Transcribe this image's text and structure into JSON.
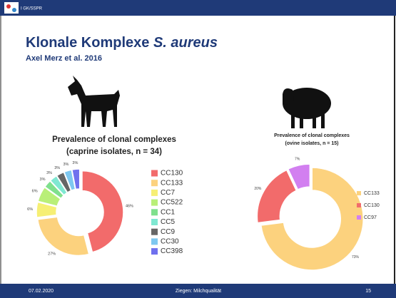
{
  "header": {
    "logo_text": "I GK/SSPR",
    "title": "Klonale Komplexe",
    "title_italic": "S. aureus",
    "subtitle": "Axel Merz et al. 2016"
  },
  "footer": {
    "date": "07.02.2020",
    "center": "Ziegen: Milchqualität",
    "page": "15"
  },
  "chart_data": [
    {
      "type": "pie",
      "title": "Prevalence of clonal complexes",
      "subtitle": "(caprine isolates, n = 34)",
      "categories": [
        "CC130",
        "CC133",
        "CC7",
        "CC522",
        "CC1",
        "CC5",
        "CC9",
        "CC30",
        "CC398"
      ],
      "values": [
        46,
        27,
        6,
        6,
        3,
        3,
        3,
        3,
        3
      ],
      "value_labels": [
        "46%",
        "27%",
        "6%",
        "6%",
        "3%",
        "3%",
        "3%",
        "3%",
        "3%"
      ],
      "colors": [
        "#f26b6b",
        "#fcd27e",
        "#f6ef74",
        "#b9ef78",
        "#7fe08d",
        "#7fe8d2",
        "#666666",
        "#7ec8f0",
        "#6f70ee"
      ]
    },
    {
      "type": "pie",
      "title": "Prevalence of clonal complexes",
      "subtitle": "(ovine isolates, n = 15)",
      "categories": [
        "CC133",
        "CC130",
        "CC97"
      ],
      "values": [
        73,
        20,
        7
      ],
      "value_labels": [
        "73%",
        "20%",
        "7%"
      ],
      "colors": [
        "#fcd27e",
        "#f26b6b",
        "#d27ff0"
      ]
    }
  ]
}
